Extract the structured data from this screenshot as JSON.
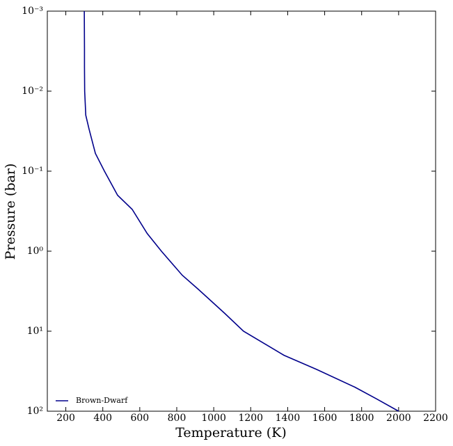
{
  "chart_data": {
    "type": "line",
    "x_label": "Temperature (K)",
    "y_label": "Pressure (bar)",
    "x": [
      300,
      301,
      301,
      302,
      308,
      326,
      360,
      409,
      480,
      559,
      640,
      717,
      830,
      917,
      1060,
      1161,
      1380,
      1556,
      1763,
      1880,
      2000
    ],
    "series": [
      {
        "name": "Brown-Dwarf",
        "color": "#00008b",
        "values": [
          0.001,
          0.003,
          0.005,
          0.01,
          0.02,
          0.03,
          0.06,
          0.1,
          0.2,
          0.3,
          0.6,
          1,
          2,
          3,
          6,
          10,
          20,
          30,
          50,
          70,
          100
        ]
      }
    ],
    "xlim": [
      100,
      2200
    ],
    "xticks": [
      200,
      400,
      600,
      800,
      1000,
      1200,
      1400,
      1600,
      1800,
      2000,
      2200
    ],
    "ylim": [
      0.001,
      100
    ],
    "y_scale": "log",
    "y_inverted": true,
    "yticks": [
      {
        "value": 0.001,
        "label": "10⁻³"
      },
      {
        "value": 0.01,
        "label": "10⁻²"
      },
      {
        "value": 0.1,
        "label": "10⁻¹"
      },
      {
        "value": 1,
        "label": "10⁰"
      },
      {
        "value": 10,
        "label": "10¹"
      },
      {
        "value": 100,
        "label": "10²"
      }
    ],
    "legend": "lower left"
  }
}
